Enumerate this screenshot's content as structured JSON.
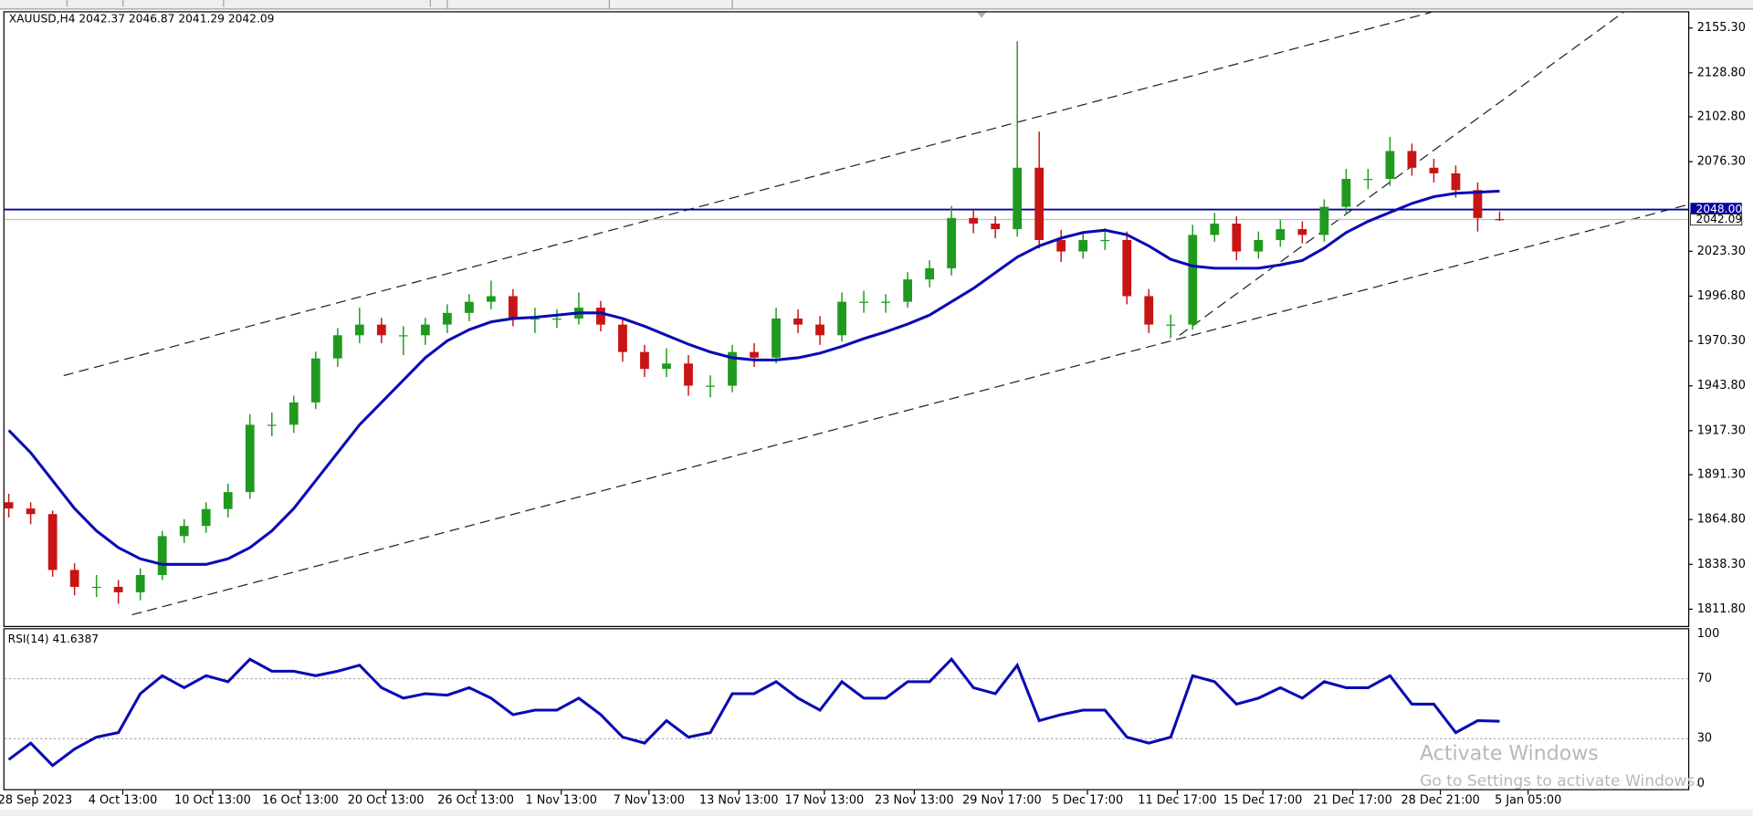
{
  "chart_data": [
    {
      "type": "candlestick",
      "title": "XAUUSD,H4  2042.37 2046.87 2041.29 2042.09",
      "xlim": [
        -0.4,
        76.6
      ],
      "xticks": [
        {
          "value": 1.2,
          "label": "28 Sep 2023"
        },
        {
          "value": 5.2,
          "label": "4 Oct 13:00"
        },
        {
          "value": 9.3,
          "label": "10 Oct 13:00"
        },
        {
          "value": 13.3,
          "label": "16 Oct 13:00"
        },
        {
          "value": 17.2,
          "label": "20 Oct 13:00"
        },
        {
          "value": 21.3,
          "label": "26 Oct 13:00"
        },
        {
          "value": 25.2,
          "label": "1 Nov 13:00"
        },
        {
          "value": 29.2,
          "label": "7 Nov 13:00"
        },
        {
          "value": 33.3,
          "label": "13 Nov 13:00"
        },
        {
          "value": 37.2,
          "label": "17 Nov 13:00"
        },
        {
          "value": 41.3,
          "label": "23 Nov 13:00"
        },
        {
          "value": 45.3,
          "label": "29 Nov 17:00"
        },
        {
          "value": 49.2,
          "label": "5 Dec 17:00"
        },
        {
          "value": 53.3,
          "label": "11 Dec 17:00"
        },
        {
          "value": 57.2,
          "label": "15 Dec 17:00"
        },
        {
          "value": 61.3,
          "label": "21 Dec 17:00"
        },
        {
          "value": 65.3,
          "label": "28 Dec 21:00"
        },
        {
          "value": 69.3,
          "label": "5 Jan 05:00"
        }
      ],
      "ylim": [
        1801.9,
        2165.2
      ],
      "yticks": [
        {
          "value": 2155.3,
          "label": "2155.30"
        },
        {
          "value": 2128.8,
          "label": "2128.80"
        },
        {
          "value": 2102.8,
          "label": "2102.80"
        },
        {
          "value": 2076.3,
          "label": "2076.30"
        },
        {
          "value": 2023.3,
          "label": "2023.30"
        },
        {
          "value": 1996.8,
          "label": "1996.80"
        },
        {
          "value": 1970.3,
          "label": "1970.30"
        },
        {
          "value": 1943.8,
          "label": "1943.80"
        },
        {
          "value": 1917.3,
          "label": "1917.30"
        },
        {
          "value": 1891.3,
          "label": "1891.30"
        },
        {
          "value": 1864.8,
          "label": "1864.80"
        },
        {
          "value": 1838.3,
          "label": "1838.30"
        },
        {
          "value": 1811.8,
          "label": "1811.80"
        }
      ],
      "up_color": "#1f9a1f",
      "down_color": "#c81414",
      "candles": [
        [
          1875,
          1880,
          1866,
          1871.3
        ],
        [
          1871.3,
          1875,
          1862,
          1868
        ],
        [
          1868,
          1870,
          1831,
          1835
        ],
        [
          1835,
          1839,
          1820,
          1825
        ],
        [
          1825,
          1832,
          1819,
          1825
        ],
        [
          1825,
          1829,
          1815,
          1821.8
        ],
        [
          1821.8,
          1836,
          1817,
          1832
        ],
        [
          1832,
          1858,
          1829,
          1855
        ],
        [
          1855,
          1865,
          1851,
          1861
        ],
        [
          1861,
          1875,
          1857,
          1871
        ],
        [
          1871,
          1886,
          1866,
          1881
        ],
        [
          1881,
          1927,
          1877,
          1920.8
        ],
        [
          1920.8,
          1928,
          1914,
          1920.8
        ],
        [
          1920.8,
          1938,
          1916,
          1934
        ],
        [
          1934,
          1964,
          1930,
          1960
        ],
        [
          1960,
          1978,
          1955,
          1973.7
        ],
        [
          1973.7,
          1990,
          1969,
          1980
        ],
        [
          1980,
          1984,
          1969,
          1973.7
        ],
        [
          1973.7,
          1979,
          1962,
          1973.7
        ],
        [
          1973.7,
          1984,
          1968,
          1980
        ],
        [
          1980,
          1992,
          1975,
          1986.9
        ],
        [
          1986.9,
          1998,
          1982,
          1993.5
        ],
        [
          1993.5,
          2006,
          1989,
          1996.8
        ],
        [
          1996.8,
          2001,
          1979,
          1983.6
        ],
        [
          1983.6,
          1990,
          1975,
          1983.6
        ],
        [
          1983.6,
          1989,
          1978,
          1983.6
        ],
        [
          1983.6,
          1999,
          1980,
          1990
        ],
        [
          1990,
          1994,
          1976,
          1980
        ],
        [
          1980,
          1984,
          1958,
          1963.8
        ],
        [
          1963.8,
          1968,
          1949,
          1953.8
        ],
        [
          1953.8,
          1966,
          1949,
          1957
        ],
        [
          1957,
          1962,
          1938,
          1943.9
        ],
        [
          1943.9,
          1950,
          1937,
          1943.9
        ],
        [
          1943.9,
          1968,
          1940,
          1963.8
        ],
        [
          1963.8,
          1969,
          1955,
          1960.5
        ],
        [
          1960.5,
          1990,
          1957,
          1983.6
        ],
        [
          1983.6,
          1989,
          1975,
          1980
        ],
        [
          1980,
          1985,
          1968,
          1973.7
        ],
        [
          1973.7,
          1999,
          1970,
          1993.5
        ],
        [
          1993.5,
          2000,
          1987,
          1993.5
        ],
        [
          1993.5,
          1998,
          1987,
          1993.5
        ],
        [
          1993.5,
          2011,
          1990,
          2006.7
        ],
        [
          2006.7,
          2018,
          2002,
          2013.3
        ],
        [
          2013.3,
          2050,
          2009,
          2043
        ],
        [
          2043,
          2048,
          2034,
          2039.7
        ],
        [
          2039.7,
          2044,
          2031,
          2036.4
        ],
        [
          2036.4,
          2147.4,
          2032,
          2072.7
        ],
        [
          2072.7,
          2094,
          2025,
          2030
        ],
        [
          2030,
          2036,
          2017,
          2023.2
        ],
        [
          2023.2,
          2035,
          2019,
          2030
        ],
        [
          2030,
          2037,
          2024,
          2030
        ],
        [
          2030,
          2035,
          1992,
          1996.8
        ],
        [
          1996.8,
          2001,
          1975,
          1980
        ],
        [
          1980,
          1986,
          1972,
          1980
        ],
        [
          1980,
          2039,
          1977,
          2033
        ],
        [
          2033,
          2046,
          2029,
          2039.7
        ],
        [
          2039.7,
          2044,
          2018,
          2023.2
        ],
        [
          2023.2,
          2035,
          2019,
          2030
        ],
        [
          2030,
          2042,
          2026,
          2036.4
        ],
        [
          2036.4,
          2041,
          2028,
          2033
        ],
        [
          2033,
          2054,
          2029,
          2049.6
        ],
        [
          2049.6,
          2072,
          2045,
          2066.1
        ],
        [
          2066.1,
          2072,
          2060,
          2066.1
        ],
        [
          2066.1,
          2091,
          2062,
          2082.6
        ],
        [
          2082.6,
          2087,
          2068,
          2072.7
        ],
        [
          2072.7,
          2078,
          2064,
          2069.4
        ],
        [
          2069.4,
          2074,
          2055,
          2059.5
        ],
        [
          2059.5,
          2064,
          2035,
          2043
        ],
        [
          2042.37,
          2046.87,
          2041.29,
          2042.09
        ]
      ],
      "ma": {
        "color": "#0a0ab4",
        "values": [
          1917.5,
          1904.3,
          1887.8,
          1871.3,
          1858.1,
          1848.2,
          1841.6,
          1838.3,
          1838.3,
          1838.3,
          1841.6,
          1848.2,
          1858.1,
          1871.3,
          1887.8,
          1904.3,
          1920.8,
          1934,
          1947.2,
          1960.4,
          1970.4,
          1977,
          1981.6,
          1983.6,
          1984.3,
          1985.6,
          1986.9,
          1986.9,
          1983.6,
          1979,
          1973.7,
          1968.4,
          1963.8,
          1960.4,
          1959.1,
          1959.1,
          1960.4,
          1963.1,
          1967.1,
          1971.7,
          1975.7,
          1980.3,
          1985.6,
          1993.5,
          2001.4,
          2010.7,
          2019.9,
          2026.5,
          2031.1,
          2034.4,
          2035.8,
          2033.1,
          2026.5,
          2018.6,
          2014.6,
          2013.3,
          2013.3,
          2013.3,
          2015.3,
          2017.9,
          2025.2,
          2034.4,
          2041,
          2046.3,
          2051.6,
          2055.6,
          2057.6,
          2058.2,
          2058.9
        ]
      },
      "hline": {
        "value": 2048,
        "label": "2048.00",
        "color": "#0000a0"
      },
      "bid": {
        "value": 2042.09,
        "label": "2042.09"
      }
    },
    {
      "type": "line",
      "title": "RSI(14) 41.6387",
      "ylim": [
        0,
        100
      ],
      "yticks": [
        0,
        30,
        70,
        100
      ],
      "line": {
        "color": "#0a0ab4",
        "values": [
          16,
          27,
          12,
          23,
          31,
          34,
          60,
          72,
          64,
          72,
          68,
          83,
          75,
          75,
          72,
          75,
          79,
          64,
          57,
          60,
          59,
          64,
          57,
          46,
          49,
          49,
          57,
          46,
          31,
          27,
          42,
          31,
          34,
          60,
          60,
          68,
          57,
          49,
          68,
          57,
          57,
          68,
          68,
          83,
          64,
          60,
          79,
          42,
          46,
          49,
          49,
          31,
          27,
          31,
          72,
          68,
          53,
          57,
          64,
          57,
          68,
          64,
          64,
          72,
          53,
          53,
          34,
          42,
          41.6
        ]
      }
    }
  ],
  "watermark": {
    "title": "Activate Windows",
    "subtitle": "Go to Settings to activate Windows."
  }
}
